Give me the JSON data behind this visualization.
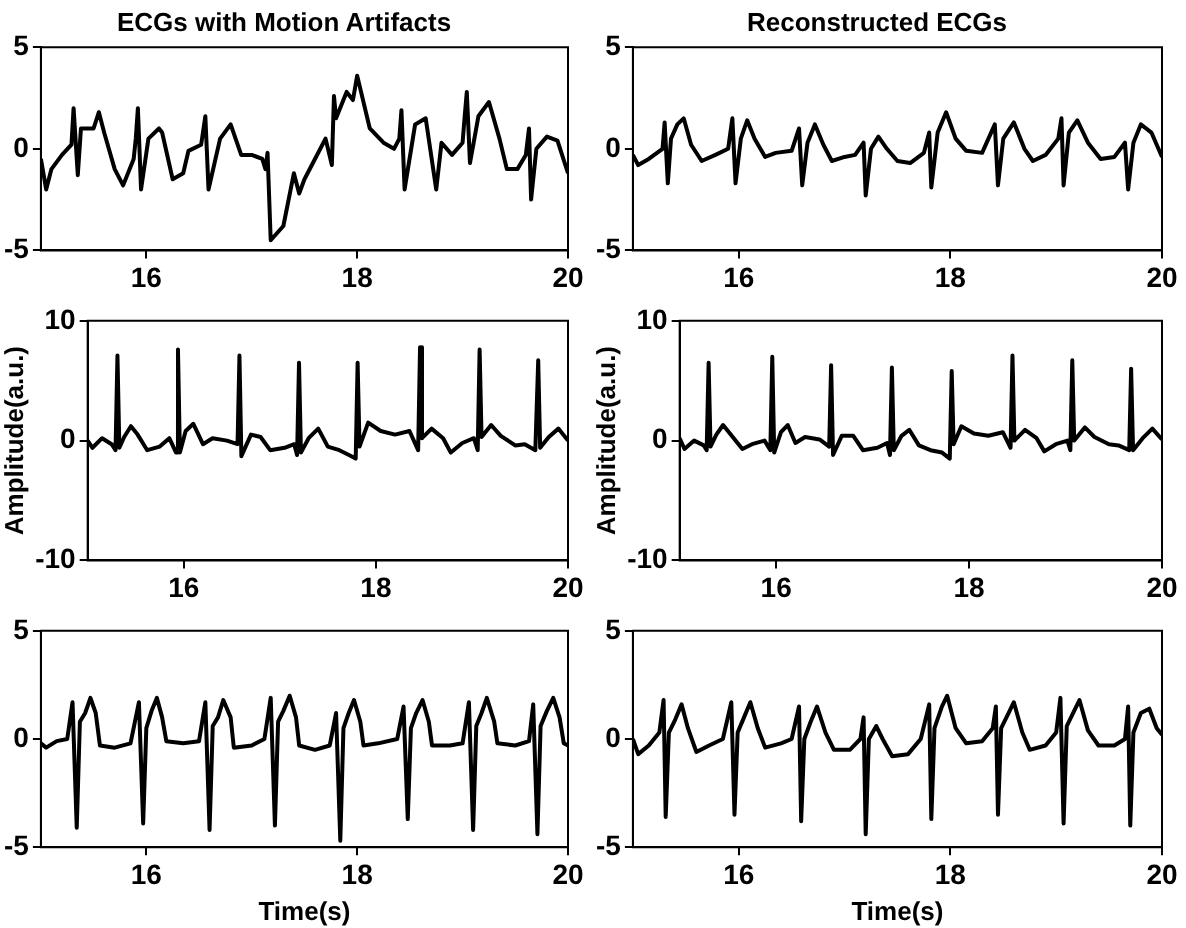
{
  "chart_data": [
    {
      "type": "line",
      "title": "ECGs with Motion Artifacts",
      "xlim": [
        15,
        20
      ],
      "xticks": [
        16,
        18,
        20
      ],
      "ylim": [
        -5,
        5
      ],
      "yticks": [
        -5,
        0,
        5
      ],
      "grid": false,
      "marker": "none",
      "line_style": "solid",
      "series": [
        {
          "color": "#000000",
          "x": [
            15.0,
            15.05,
            15.1,
            15.2,
            15.29,
            15.31,
            15.35,
            15.38,
            15.5,
            15.55,
            15.6,
            15.7,
            15.78,
            15.88,
            15.9,
            15.92,
            15.95,
            16.02,
            16.12,
            16.15,
            16.25,
            16.35,
            16.4,
            16.52,
            16.56,
            16.59,
            16.7,
            16.8,
            16.9,
            17.0,
            17.1,
            17.13,
            17.15,
            17.18,
            17.3,
            17.4,
            17.45,
            17.5,
            17.6,
            17.7,
            17.76,
            17.78,
            17.8,
            17.9,
            17.96,
            18.0,
            18.12,
            18.25,
            18.35,
            18.4,
            18.42,
            18.45,
            18.55,
            18.65,
            18.75,
            18.8,
            18.9,
            19.0,
            19.02,
            19.04,
            19.07,
            19.15,
            19.25,
            19.35,
            19.42,
            19.52,
            19.6,
            19.63,
            19.65,
            19.7,
            19.8,
            19.9,
            20.0
          ],
          "values": [
            -0.5,
            -2.0,
            -1.0,
            -0.3,
            0.2,
            2.0,
            -1.3,
            1.0,
            1.0,
            1.8,
            0.8,
            -1.0,
            -1.8,
            -0.5,
            0.5,
            2.0,
            -2.0,
            0.5,
            1.0,
            0.8,
            -1.5,
            -1.2,
            -0.1,
            0.2,
            1.6,
            -2.0,
            0.5,
            1.2,
            -0.3,
            -0.3,
            -0.5,
            -1.0,
            -0.2,
            -4.5,
            -3.8,
            -1.2,
            -2.2,
            -1.5,
            -0.5,
            0.5,
            -0.8,
            2.6,
            1.5,
            2.8,
            2.4,
            3.6,
            1.0,
            0.3,
            0.0,
            0.5,
            1.9,
            -2.0,
            1.2,
            1.5,
            -2.0,
            0.3,
            -0.3,
            0.3,
            1.6,
            2.8,
            -0.7,
            1.6,
            2.3,
            0.5,
            -1.0,
            -1.0,
            -0.3,
            1.0,
            -2.5,
            0.0,
            0.6,
            0.4,
            -1.2
          ]
        }
      ]
    },
    {
      "type": "line",
      "title": "Reconstructed ECGs",
      "xlim": [
        15,
        20
      ],
      "xticks": [
        16,
        18,
        20
      ],
      "ylim": [
        -5,
        5
      ],
      "yticks": [
        -5,
        0,
        5
      ],
      "grid": false,
      "marker": "none",
      "line_style": "solid",
      "series": [
        {
          "color": "#000000",
          "x": [
            15.0,
            15.05,
            15.15,
            15.28,
            15.3,
            15.33,
            15.36,
            15.42,
            15.48,
            15.55,
            15.65,
            15.78,
            15.9,
            15.94,
            15.97,
            16.02,
            16.08,
            16.15,
            16.25,
            16.35,
            16.5,
            16.57,
            16.6,
            16.65,
            16.72,
            16.8,
            16.88,
            17.0,
            17.1,
            17.18,
            17.2,
            17.25,
            17.32,
            17.4,
            17.5,
            17.62,
            17.75,
            17.8,
            17.82,
            17.88,
            17.96,
            18.05,
            18.15,
            18.3,
            18.42,
            18.45,
            18.5,
            18.6,
            18.7,
            18.78,
            18.9,
            19.02,
            19.05,
            19.07,
            19.12,
            19.2,
            19.3,
            19.42,
            19.55,
            19.65,
            19.68,
            19.73,
            19.8,
            19.9,
            20.0
          ],
          "values": [
            -0.3,
            -0.8,
            -0.5,
            0.0,
            1.3,
            -1.7,
            0.5,
            1.2,
            1.5,
            0.2,
            -0.6,
            -0.3,
            0.0,
            1.5,
            -1.7,
            0.5,
            1.4,
            0.5,
            -0.4,
            -0.2,
            -0.1,
            1.0,
            -1.8,
            0.3,
            1.2,
            0.2,
            -0.6,
            -0.4,
            -0.3,
            0.3,
            -2.3,
            0.0,
            0.6,
            0.0,
            -0.6,
            -0.7,
            -0.2,
            0.8,
            -1.9,
            0.8,
            1.8,
            0.5,
            -0.1,
            -0.2,
            1.2,
            -1.8,
            0.5,
            1.3,
            0.0,
            -0.6,
            -0.3,
            0.5,
            1.5,
            -1.8,
            0.8,
            1.4,
            0.3,
            -0.5,
            -0.4,
            0.3,
            -2.0,
            0.3,
            1.2,
            0.8,
            -0.4
          ]
        }
      ]
    },
    {
      "type": "line",
      "ylabel": "Amplitude(a.u.)",
      "xlim": [
        15,
        20
      ],
      "xticks": [
        16,
        18,
        20
      ],
      "ylim": [
        -10,
        10
      ],
      "yticks": [
        -10,
        0,
        10
      ],
      "grid": false,
      "marker": "none",
      "line_style": "solid",
      "series": [
        {
          "color": "#000000",
          "x": [
            15.0,
            15.05,
            15.15,
            15.25,
            15.29,
            15.31,
            15.33,
            15.38,
            15.45,
            15.52,
            15.62,
            15.75,
            15.85,
            15.92,
            15.94,
            15.96,
            16.02,
            16.1,
            16.2,
            16.3,
            16.45,
            16.56,
            16.58,
            16.6,
            16.7,
            16.8,
            16.9,
            17.05,
            17.15,
            17.18,
            17.2,
            17.22,
            17.3,
            17.4,
            17.5,
            17.62,
            17.72,
            17.79,
            17.81,
            17.83,
            17.92,
            18.05,
            18.2,
            18.35,
            18.44,
            18.46,
            18.48,
            18.58,
            18.7,
            18.78,
            18.9,
            19.02,
            19.06,
            19.08,
            19.1,
            19.2,
            19.3,
            19.45,
            19.55,
            19.66,
            19.69,
            19.71,
            19.8,
            19.9,
            20.0
          ],
          "values": [
            0.0,
            -0.6,
            0.2,
            -0.3,
            -0.8,
            7.1,
            -0.6,
            0.3,
            1.2,
            0.5,
            -0.8,
            -0.5,
            0.2,
            -1.0,
            7.6,
            -1.0,
            0.8,
            1.4,
            -0.3,
            0.2,
            0.0,
            -0.3,
            7.1,
            -1.3,
            0.5,
            0.3,
            -0.8,
            -0.6,
            -0.3,
            -1.2,
            6.5,
            -1.0,
            0.2,
            1.0,
            -0.5,
            -0.8,
            -1.2,
            -1.5,
            6.5,
            -0.5,
            1.5,
            0.8,
            0.5,
            0.8,
            -0.8,
            7.8,
            0.2,
            1.0,
            0.2,
            -1.0,
            -0.2,
            0.2,
            -0.8,
            7.6,
            0.3,
            1.3,
            0.4,
            -0.4,
            -0.3,
            -0.8,
            6.7,
            -0.6,
            0.3,
            1.0,
            0.0
          ]
        }
      ]
    },
    {
      "type": "line",
      "ylabel": "Amplitude(a.u.)",
      "xlim": [
        15,
        20
      ],
      "xticks": [
        16,
        18,
        20
      ],
      "ylim": [
        -10,
        10
      ],
      "yticks": [
        -10,
        0,
        10
      ],
      "grid": false,
      "marker": "none",
      "line_style": "solid",
      "series": [
        {
          "color": "#000000",
          "x": [
            15.0,
            15.05,
            15.15,
            15.25,
            15.28,
            15.3,
            15.32,
            15.38,
            15.45,
            15.55,
            15.65,
            15.75,
            15.88,
            15.94,
            15.96,
            15.98,
            16.05,
            16.12,
            16.2,
            16.3,
            16.45,
            16.55,
            16.57,
            16.59,
            16.68,
            16.8,
            16.9,
            17.05,
            17.15,
            17.18,
            17.2,
            17.22,
            17.3,
            17.38,
            17.48,
            17.6,
            17.72,
            17.8,
            17.82,
            17.84,
            17.92,
            18.05,
            18.2,
            18.35,
            18.43,
            18.45,
            18.47,
            18.58,
            18.7,
            18.78,
            18.9,
            19.02,
            19.05,
            19.07,
            19.09,
            19.2,
            19.3,
            19.45,
            19.55,
            19.66,
            19.68,
            19.7,
            19.8,
            19.9,
            20.0
          ],
          "values": [
            0.2,
            -0.7,
            0.0,
            -0.4,
            -0.8,
            6.5,
            -0.5,
            0.5,
            1.3,
            0.3,
            -0.7,
            -0.3,
            0.0,
            -0.8,
            7.0,
            -1.0,
            0.7,
            1.3,
            -0.2,
            0.3,
            0.1,
            -0.5,
            6.3,
            -1.2,
            0.4,
            0.4,
            -0.8,
            -0.6,
            -0.2,
            -1.2,
            6.1,
            -0.8,
            0.4,
            0.9,
            -0.4,
            -0.8,
            -1.0,
            -1.5,
            5.8,
            -0.3,
            1.2,
            0.6,
            0.4,
            0.7,
            -0.6,
            7.1,
            0.0,
            0.9,
            0.2,
            -0.9,
            -0.3,
            0.0,
            -0.8,
            6.7,
            0.0,
            1.1,
            0.3,
            -0.3,
            -0.4,
            -0.8,
            6.0,
            -0.8,
            0.2,
            1.0,
            0.1
          ]
        }
      ]
    },
    {
      "type": "line",
      "xlabel": "Time(s)",
      "xlim": [
        15,
        20
      ],
      "xticks": [
        16,
        18,
        20
      ],
      "ylim": [
        -5,
        5
      ],
      "yticks": [
        -5,
        0,
        5
      ],
      "grid": false,
      "marker": "none",
      "line_style": "solid",
      "series": [
        {
          "color": "#000000",
          "x": [
            15.0,
            15.05,
            15.15,
            15.25,
            15.3,
            15.34,
            15.37,
            15.42,
            15.47,
            15.52,
            15.56,
            15.7,
            15.85,
            15.93,
            15.97,
            16.0,
            16.05,
            16.1,
            16.15,
            16.19,
            16.35,
            16.5,
            16.56,
            16.6,
            16.63,
            16.68,
            16.73,
            16.8,
            16.83,
            17.0,
            17.12,
            17.18,
            17.22,
            17.25,
            17.3,
            17.36,
            17.42,
            17.45,
            17.6,
            17.74,
            17.8,
            17.84,
            17.87,
            17.92,
            17.97,
            18.03,
            18.06,
            18.2,
            18.38,
            18.44,
            18.48,
            18.51,
            18.56,
            18.62,
            18.68,
            18.71,
            18.88,
            19.0,
            19.06,
            19.1,
            19.13,
            19.18,
            19.23,
            19.3,
            19.33,
            19.5,
            19.63,
            19.67,
            19.71,
            19.74,
            19.8,
            19.86,
            19.92,
            19.96,
            20.0
          ],
          "values": [
            -0.2,
            -0.4,
            -0.1,
            0.0,
            1.7,
            -4.1,
            0.8,
            1.2,
            1.9,
            1.2,
            -0.3,
            -0.4,
            -0.2,
            1.7,
            -3.9,
            0.5,
            1.3,
            1.9,
            1.0,
            -0.1,
            -0.2,
            -0.1,
            1.7,
            -4.2,
            0.6,
            1.0,
            1.8,
            1.0,
            -0.4,
            -0.3,
            0.0,
            1.9,
            -4.0,
            0.8,
            1.3,
            2.0,
            1.0,
            -0.3,
            -0.5,
            -0.3,
            1.2,
            -4.7,
            0.5,
            1.2,
            1.8,
            0.8,
            -0.3,
            -0.2,
            0.0,
            1.5,
            -3.7,
            0.5,
            1.2,
            1.8,
            0.8,
            -0.3,
            -0.3,
            -0.2,
            1.7,
            -4.2,
            0.6,
            1.2,
            1.9,
            0.8,
            -0.2,
            -0.3,
            -0.1,
            1.6,
            -4.4,
            0.6,
            1.3,
            1.9,
            1.0,
            -0.2,
            -0.3
          ]
        }
      ]
    },
    {
      "type": "line",
      "xlabel": "Time(s)",
      "xlim": [
        15,
        20
      ],
      "xticks": [
        16,
        18,
        20
      ],
      "ylim": [
        -5,
        5
      ],
      "yticks": [
        -5,
        0,
        5
      ],
      "grid": false,
      "marker": "none",
      "line_style": "solid",
      "series": [
        {
          "color": "#000000",
          "x": [
            15.0,
            15.05,
            15.15,
            15.25,
            15.29,
            15.31,
            15.34,
            15.4,
            15.46,
            15.52,
            15.6,
            15.72,
            15.85,
            15.93,
            15.96,
            15.99,
            16.05,
            16.11,
            16.18,
            16.25,
            16.4,
            16.5,
            16.57,
            16.59,
            16.62,
            16.68,
            16.74,
            16.82,
            16.9,
            17.05,
            17.15,
            17.18,
            17.2,
            17.23,
            17.3,
            17.36,
            17.45,
            17.6,
            17.72,
            17.8,
            17.82,
            17.85,
            17.92,
            17.97,
            18.05,
            18.15,
            18.3,
            18.4,
            18.43,
            18.45,
            18.48,
            18.55,
            18.6,
            18.68,
            18.75,
            18.9,
            19.0,
            19.04,
            19.07,
            19.1,
            19.17,
            19.22,
            19.3,
            19.4,
            19.55,
            19.65,
            19.68,
            19.7,
            19.73,
            19.8,
            19.88,
            19.95,
            20.0
          ],
          "values": [
            0.0,
            -0.7,
            -0.3,
            0.3,
            1.8,
            -3.6,
            0.3,
            0.9,
            1.6,
            0.5,
            -0.6,
            -0.3,
            0.0,
            1.7,
            -3.5,
            0.3,
            1.0,
            1.7,
            0.5,
            -0.4,
            -0.2,
            0.0,
            1.5,
            -3.8,
            0.0,
            0.8,
            1.5,
            0.3,
            -0.5,
            -0.5,
            0.0,
            1.0,
            -4.4,
            0.0,
            0.6,
            0.0,
            -0.8,
            -0.7,
            0.0,
            1.6,
            -3.7,
            0.5,
            1.5,
            2.0,
            0.5,
            -0.2,
            -0.1,
            0.5,
            1.5,
            -3.5,
            0.5,
            1.2,
            1.7,
            0.3,
            -0.5,
            -0.3,
            0.3,
            1.9,
            -3.9,
            0.6,
            1.3,
            1.8,
            0.4,
            -0.3,
            -0.3,
            0.0,
            1.5,
            -4.0,
            0.3,
            1.2,
            1.4,
            0.5,
            0.2
          ]
        }
      ]
    }
  ]
}
